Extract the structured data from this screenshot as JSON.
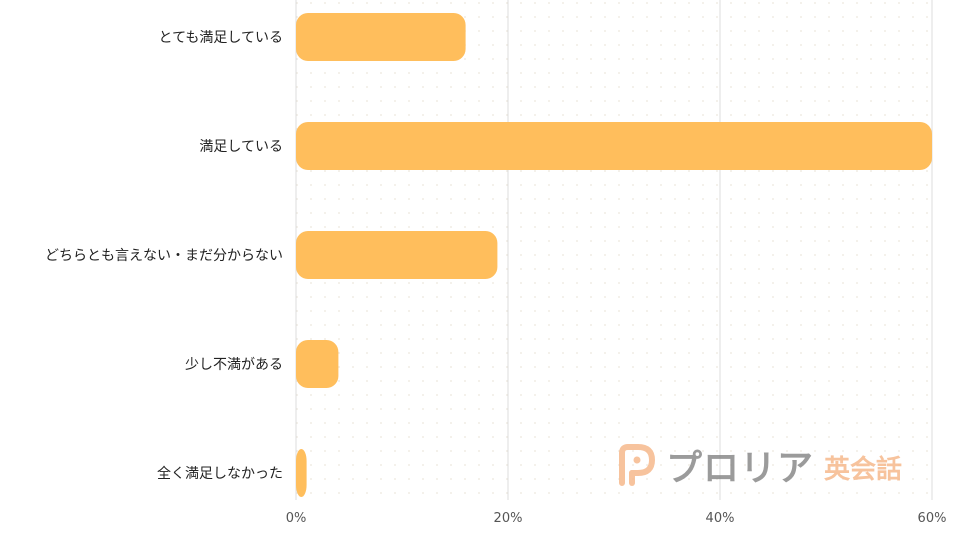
{
  "chart_data": {
    "type": "bar",
    "orientation": "horizontal",
    "title": "",
    "xlabel": "",
    "ylabel": "",
    "categories": [
      "とても満足している",
      "満足している",
      "どちらとも言えない・まだ分からない",
      "少し不満がある",
      "全く満足しなかった"
    ],
    "values": [
      16,
      60,
      19,
      4,
      1
    ],
    "xlim": [
      0,
      60
    ],
    "xticks": [
      0,
      20,
      40,
      60
    ],
    "xtick_labels": [
      "0%",
      "20%",
      "40%",
      "60%"
    ],
    "grid": true,
    "legend": "none",
    "bar_color": "#ffbe5c",
    "grid_color": "#dddddd"
  },
  "watermark": {
    "brand": "プロリア",
    "sub": "英会話",
    "logo_color": "#f6b98d",
    "brand_color": "#8a8a8a"
  }
}
